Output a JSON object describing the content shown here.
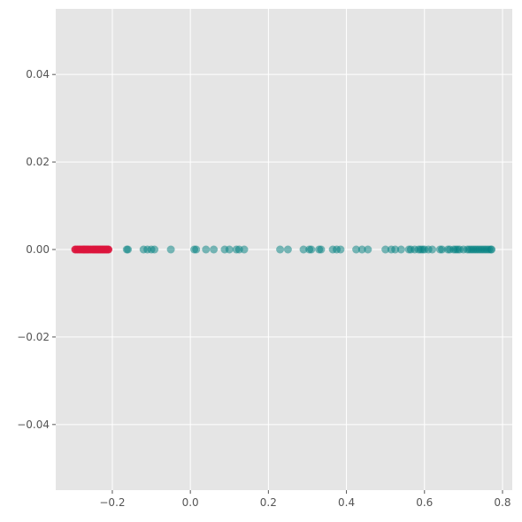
{
  "chart_data": {
    "type": "scatter",
    "title": "",
    "xlabel": "",
    "ylabel": "",
    "xlim": [
      -0.345,
      0.825
    ],
    "ylim": [
      -0.055,
      0.055
    ],
    "grid": true,
    "x_ticks": [
      {
        "value": -0.2,
        "label": "−0.2"
      },
      {
        "value": 0.0,
        "label": "0.0"
      },
      {
        "value": 0.2,
        "label": "0.2"
      },
      {
        "value": 0.4,
        "label": "0.4"
      },
      {
        "value": 0.6,
        "label": "0.6"
      },
      {
        "value": 0.8,
        "label": "0.8"
      }
    ],
    "y_ticks": [
      {
        "value": 0.04,
        "label": "0.04"
      },
      {
        "value": 0.02,
        "label": "0.02"
      },
      {
        "value": 0.0,
        "label": "0.00"
      },
      {
        "value": -0.02,
        "label": "−0.02"
      },
      {
        "value": -0.04,
        "label": "−0.04"
      }
    ],
    "series": [
      {
        "color": "#008080",
        "opacity": 0.5,
        "x": [
          -0.163,
          -0.16,
          -0.12,
          -0.11,
          -0.1,
          -0.092,
          -0.05,
          0.01,
          0.015,
          0.04,
          0.06,
          0.088,
          0.1,
          0.118,
          0.125,
          0.138,
          0.23,
          0.25,
          0.29,
          0.305,
          0.31,
          0.33,
          0.335,
          0.365,
          0.375,
          0.385,
          0.425,
          0.44,
          0.455,
          0.5,
          0.515,
          0.525,
          0.54,
          0.56,
          0.565,
          0.575,
          0.585,
          0.59,
          0.595,
          0.6,
          0.61,
          0.62,
          0.64,
          0.645,
          0.66,
          0.665,
          0.675,
          0.68,
          0.685,
          0.69,
          0.7,
          0.71,
          0.715,
          0.72,
          0.725,
          0.73,
          0.735,
          0.74,
          0.745,
          0.75,
          0.755,
          0.76,
          0.765,
          0.77,
          0.772
        ],
        "y": [
          0,
          0,
          0,
          0,
          0,
          0,
          0,
          0,
          0,
          0,
          0,
          0,
          0,
          0,
          0,
          0,
          0,
          0,
          0,
          0,
          0,
          0,
          0,
          0,
          0,
          0,
          0,
          0,
          0,
          0,
          0,
          0,
          0,
          0,
          0,
          0,
          0,
          0,
          0,
          0,
          0,
          0,
          0,
          0,
          0,
          0,
          0,
          0,
          0,
          0,
          0,
          0,
          0,
          0,
          0,
          0,
          0,
          0,
          0,
          0,
          0,
          0,
          0,
          0,
          0
        ]
      },
      {
        "color": "#dc143c",
        "opacity": 0.9,
        "x": [
          -0.295,
          -0.29,
          -0.285,
          -0.28,
          -0.275,
          -0.272,
          -0.268,
          -0.264,
          -0.26,
          -0.255,
          -0.25,
          -0.246,
          -0.242,
          -0.238,
          -0.234,
          -0.23,
          -0.226,
          -0.222,
          -0.218,
          -0.214,
          -0.21
        ],
        "y": [
          0,
          0,
          0,
          0,
          0,
          0,
          0,
          0,
          0,
          0,
          0,
          0,
          0,
          0,
          0,
          0,
          0,
          0,
          0,
          0,
          0
        ]
      }
    ]
  }
}
